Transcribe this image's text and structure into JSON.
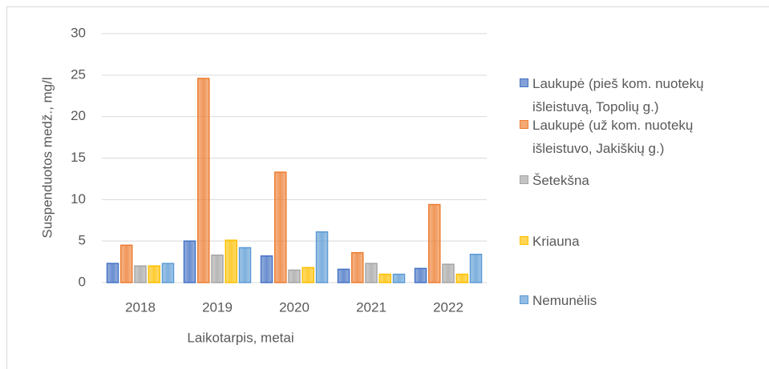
{
  "chart_data": {
    "type": "bar",
    "categories": [
      "2018",
      "2019",
      "2020",
      "2021",
      "2022"
    ],
    "series": [
      {
        "name": "Laukupė (pieš kom. nuotekų išleistuvą, Topolių g.)",
        "color": "#4472c4",
        "values": [
          2.3,
          5.0,
          3.2,
          1.6,
          1.7
        ]
      },
      {
        "name": "Laukupė (už kom. nuotekų išleistuvo, Jakiškių g.)",
        "color": "#ed7d31",
        "values": [
          4.5,
          24.6,
          13.3,
          3.6,
          9.4
        ]
      },
      {
        "name": "Šetekšna",
        "color": "#a5a5a5",
        "values": [
          2.0,
          3.3,
          1.5,
          2.3,
          2.2
        ]
      },
      {
        "name": "Kriauna",
        "color": "#ffc000",
        "values": [
          2.0,
          5.1,
          1.8,
          1.0,
          1.0
        ]
      },
      {
        "name": "Nemunėlis",
        "color": "#5b9bd5",
        "values": [
          2.3,
          4.2,
          6.1,
          1.0,
          3.4
        ]
      }
    ],
    "xlabel": "Laikotarpis, metai",
    "ylabel": "Suspenduotos medž., mg/l",
    "ylim": [
      0,
      30
    ],
    "yticks": [
      0,
      5,
      10,
      15,
      20,
      25,
      30
    ],
    "grid": true,
    "legend": "right"
  }
}
